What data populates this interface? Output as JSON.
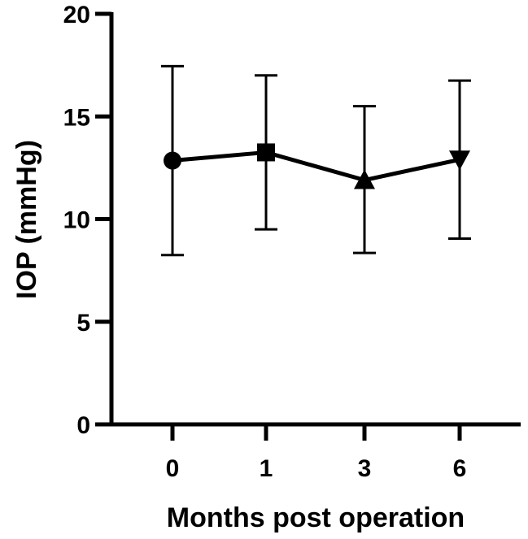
{
  "chart_data": {
    "type": "line",
    "title": "",
    "xlabel": "Months post operation",
    "ylabel": "IOP (mmHg)",
    "ylim": [
      0,
      20
    ],
    "yticks": [
      "0",
      "5",
      "10",
      "15",
      "20"
    ],
    "categories": [
      "0",
      "1",
      "3",
      "6"
    ],
    "series": [
      {
        "values": [
          12.85,
          13.25,
          11.9,
          12.9
        ],
        "error_low": [
          8.25,
          9.5,
          8.35,
          9.05
        ],
        "error_high": [
          17.45,
          17.0,
          15.5,
          16.75
        ],
        "markers": [
          "circle",
          "square",
          "triangle-up",
          "triangle-down"
        ]
      }
    ],
    "grid": false,
    "legend": "none"
  }
}
